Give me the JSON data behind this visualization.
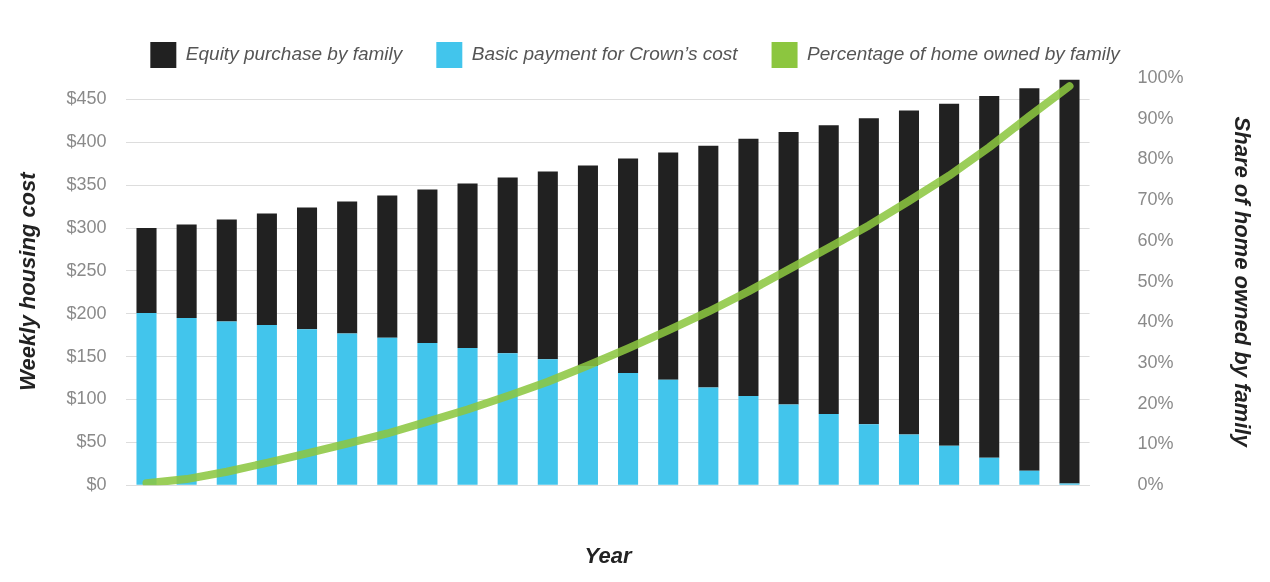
{
  "chart_data": {
    "type": "bar",
    "stacked": true,
    "xlabel": "Year",
    "ylabel": "Weekly housing cost",
    "y2label": "Share of home owned by family",
    "categories": [
      null,
      null,
      null,
      null,
      null,
      null,
      null,
      null,
      null,
      null,
      null,
      null,
      null,
      null,
      null,
      null,
      null,
      null,
      null,
      null,
      null,
      null,
      null,
      null
    ],
    "series": [
      {
        "name": "Basic payment for Crown’s cost",
        "color": "#42c5ec",
        "values": [
          201,
          195,
          191,
          187,
          182,
          177,
          172,
          166,
          160,
          154,
          147,
          139,
          131,
          123,
          114,
          104,
          94,
          83,
          71,
          59,
          46,
          32,
          17,
          2
        ]
      },
      {
        "name": "Equity purchase by family",
        "color": "#212121",
        "values": [
          99,
          109,
          119,
          130,
          142,
          154,
          166,
          179,
          192,
          205,
          219,
          234,
          250,
          265,
          282,
          300,
          318,
          337,
          357,
          378,
          399,
          422,
          446,
          471
        ]
      },
      {
        "name": "Percentage of home owned by family",
        "type": "line",
        "axis": "y2",
        "color": "#8cc63f",
        "values": [
          0.5,
          1.5,
          3.3,
          5.5,
          7.8,
          10.2,
          12.7,
          15.6,
          18.6,
          21.9,
          25.4,
          29.4,
          33.6,
          38,
          42.6,
          47.6,
          53,
          58.3,
          63.8,
          69.8,
          76,
          83,
          90.6,
          98
        ]
      }
    ],
    "ylim": [
      0,
      475
    ],
    "yticks": [
      {
        "value": 0,
        "label": "$0"
      },
      {
        "value": 50,
        "label": "$50"
      },
      {
        "value": 100,
        "label": "$100"
      },
      {
        "value": 150,
        "label": "$150"
      },
      {
        "value": 200,
        "label": "$200"
      },
      {
        "value": 250,
        "label": "$250"
      },
      {
        "value": 300,
        "label": "$300"
      },
      {
        "value": 350,
        "label": "$350"
      },
      {
        "value": 400,
        "label": "$400"
      },
      {
        "value": 450,
        "label": "$450"
      }
    ],
    "y2lim": [
      0,
      100
    ],
    "y2ticks": [
      {
        "value": 0,
        "label": "0%"
      },
      {
        "value": 10,
        "label": "10%"
      },
      {
        "value": 20,
        "label": "20%"
      },
      {
        "value": 30,
        "label": "30%"
      },
      {
        "value": 40,
        "label": "40%"
      },
      {
        "value": 50,
        "label": "50%"
      },
      {
        "value": 60,
        "label": "60%"
      },
      {
        "value": 70,
        "label": "70%"
      },
      {
        "value": 80,
        "label": "80%"
      },
      {
        "value": 90,
        "label": "90%"
      },
      {
        "value": 100,
        "label": "100%"
      }
    ],
    "grid": "y",
    "legend": "top",
    "marker": "none",
    "line_style": "solid"
  }
}
